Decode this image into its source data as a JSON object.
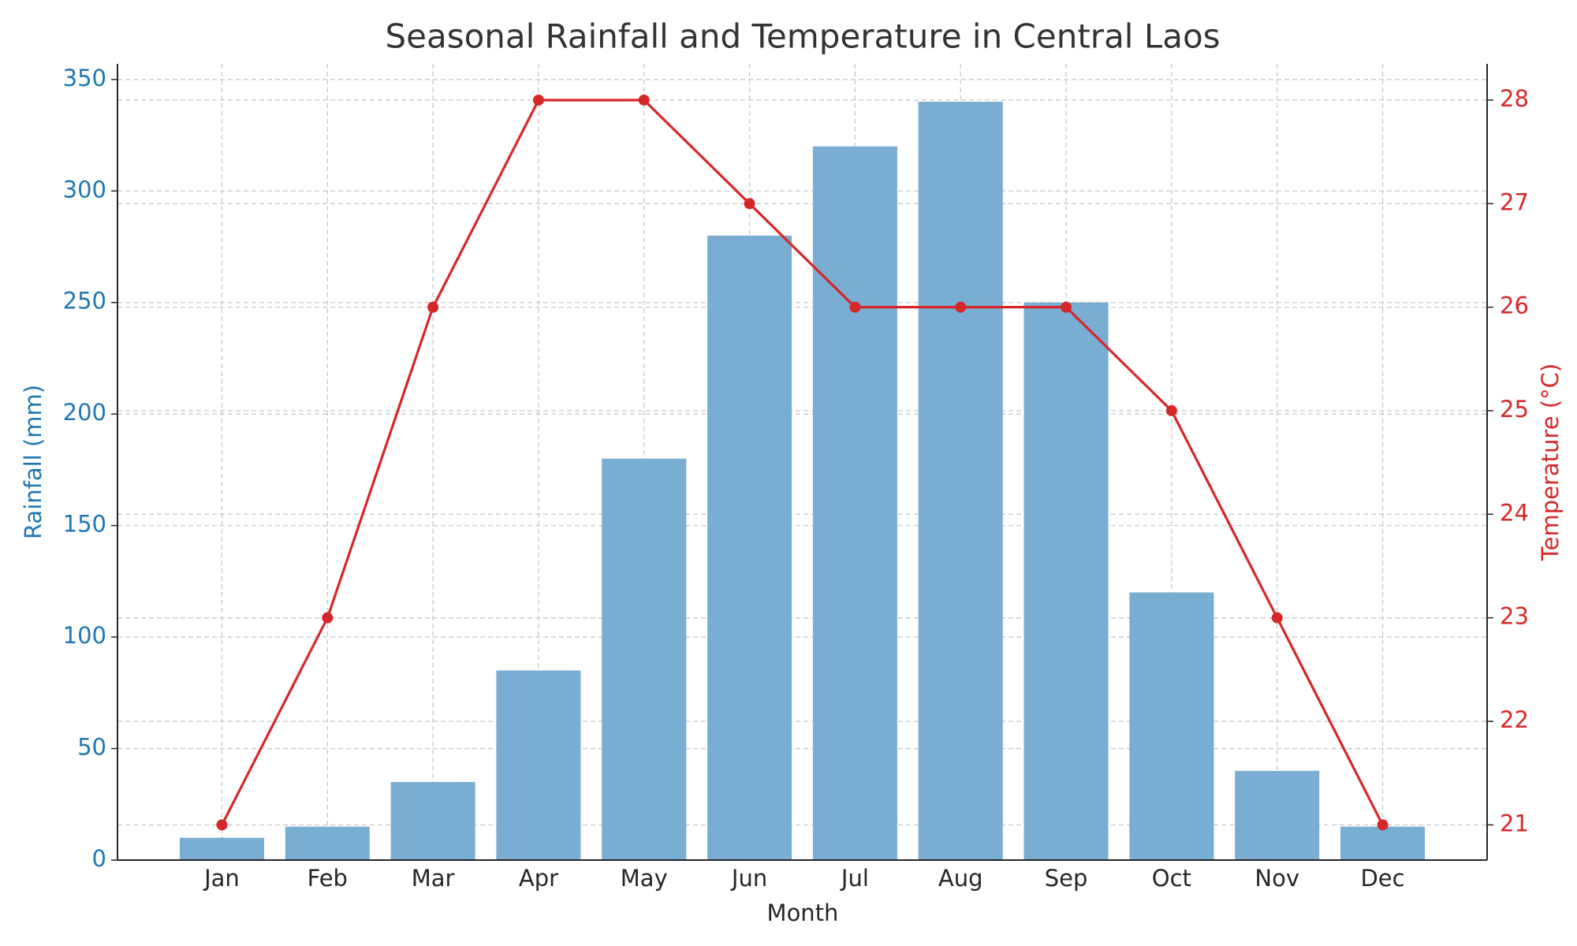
{
  "chart_data": {
    "type": "bar_line",
    "title": "Seasonal Rainfall and Temperature in Central Laos",
    "xlabel": "Month",
    "ylabel": "Rainfall (mm)",
    "y2label": "Temperature (°C)",
    "categories": [
      "Jan",
      "Feb",
      "Mar",
      "Apr",
      "May",
      "Jun",
      "Jul",
      "Aug",
      "Sep",
      "Oct",
      "Nov",
      "Dec"
    ],
    "series": [
      {
        "name": "Rainfall (mm)",
        "type": "bar",
        "color": "#79add2",
        "values": [
          10,
          15,
          35,
          85,
          180,
          280,
          320,
          340,
          250,
          120,
          40,
          15
        ]
      },
      {
        "name": "Temperature (°C)",
        "type": "line",
        "axis": "y2",
        "color": "#d62728",
        "values": [
          21,
          23,
          26,
          28,
          28,
          27,
          26,
          26,
          26,
          25,
          23,
          21
        ]
      }
    ],
    "ylim": [
      0,
      357
    ],
    "yticks": [
      0,
      50,
      100,
      150,
      200,
      250,
      300,
      350
    ],
    "ycolor": "#1f77b4",
    "y2lim": [
      20.66,
      28.35
    ],
    "y2ticks": [
      21,
      22,
      23,
      24,
      25,
      26,
      27,
      28
    ],
    "y2color": "#d62728",
    "grid": true
  }
}
